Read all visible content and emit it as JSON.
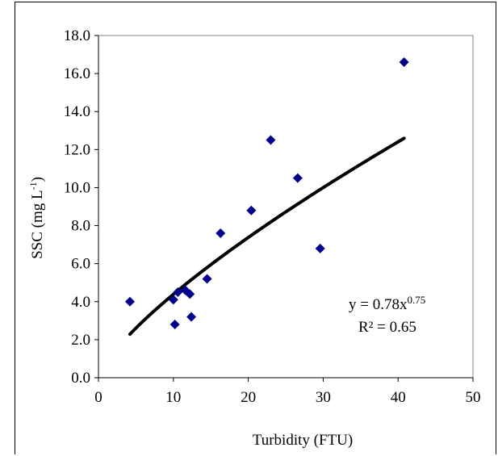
{
  "chart_data": {
    "type": "scatter",
    "xlabel": "Turbidity (FTU)",
    "ylabel_main": "SSC (mg L",
    "ylabel_sup": "-1",
    "ylabel_end": ")",
    "xlim": [
      0,
      50
    ],
    "ylim": [
      0,
      18
    ],
    "xticks": [
      0,
      10,
      20,
      30,
      40,
      50
    ],
    "yticks": [
      0,
      2,
      4,
      6,
      8,
      10,
      12,
      14,
      16,
      18
    ],
    "xtick_labels": [
      "0",
      "10",
      "20",
      "30",
      "40",
      "50"
    ],
    "ytick_labels": [
      "0.0",
      "2.0",
      "4.0",
      "6.0",
      "8.0",
      "10.0",
      "12.0",
      "14.0",
      "16.0",
      "18.0"
    ],
    "grid": false,
    "legend": "none",
    "marker_color": "#00008B",
    "points": [
      {
        "x": 4.2,
        "y": 4.0
      },
      {
        "x": 10.0,
        "y": 4.1
      },
      {
        "x": 10.6,
        "y": 4.5
      },
      {
        "x": 10.2,
        "y": 2.8
      },
      {
        "x": 11.6,
        "y": 4.6
      },
      {
        "x": 12.2,
        "y": 4.4
      },
      {
        "x": 12.4,
        "y": 3.2
      },
      {
        "x": 14.5,
        "y": 5.2
      },
      {
        "x": 16.3,
        "y": 7.6
      },
      {
        "x": 20.4,
        "y": 8.8
      },
      {
        "x": 23.0,
        "y": 12.5
      },
      {
        "x": 26.6,
        "y": 10.5
      },
      {
        "x": 29.6,
        "y": 6.8
      },
      {
        "x": 40.8,
        "y": 16.6
      }
    ],
    "trendline": {
      "type": "power",
      "a": 0.78,
      "b": 0.75,
      "x_range": [
        4.2,
        40.8
      ],
      "equation_text": "y = 0.78x",
      "equation_exponent": "0.75",
      "r2_text": "R² = 0.65"
    }
  }
}
